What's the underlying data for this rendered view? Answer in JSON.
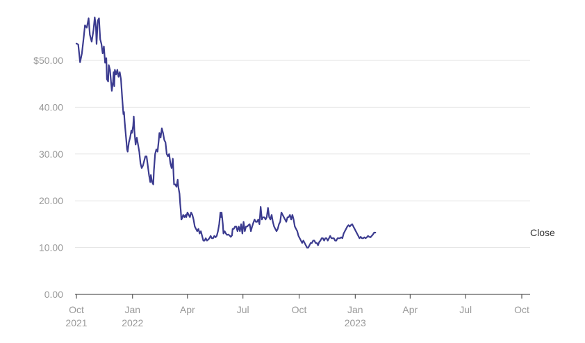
{
  "chart_data": {
    "type": "line",
    "title": "",
    "xlabel": "",
    "ylabel": "",
    "ylim": [
      0,
      60
    ],
    "y_ticks": [
      {
        "value": 0,
        "label": "0.00"
      },
      {
        "value": 10,
        "label": "10.00"
      },
      {
        "value": 20,
        "label": "20.00"
      },
      {
        "value": 30,
        "label": "30.00"
      },
      {
        "value": 40,
        "label": "40.00"
      },
      {
        "value": 50,
        "label": "$50.00"
      }
    ],
    "x_ticks": [
      {
        "day": 0,
        "line1": "Oct",
        "line2": "2021"
      },
      {
        "day": 92,
        "line1": "Jan",
        "line2": "2022"
      },
      {
        "day": 182,
        "line1": "Apr",
        "line2": ""
      },
      {
        "day": 273,
        "line1": "Jul",
        "line2": ""
      },
      {
        "day": 365,
        "line1": "Oct",
        "line2": ""
      },
      {
        "day": 457,
        "line1": "Jan",
        "line2": "2023"
      },
      {
        "day": 547,
        "line1": "Apr",
        "line2": ""
      },
      {
        "day": 638,
        "line1": "Jul",
        "line2": ""
      },
      {
        "day": 730,
        "line1": "Oct",
        "line2": ""
      }
    ],
    "x_range_days": [
      0,
      730
    ],
    "colors": {
      "line": "#3b3b8f",
      "grid": "#e3e3e3",
      "axis": "#333333",
      "tick_text": "#999999",
      "label_text": "#333333"
    },
    "series": [
      {
        "name": "Close",
        "points": [
          [
            0,
            53.6
          ],
          [
            3,
            53.4
          ],
          [
            6,
            49.6
          ],
          [
            9,
            51.5
          ],
          [
            12,
            55
          ],
          [
            14,
            57.5
          ],
          [
            17,
            57
          ],
          [
            20,
            59
          ],
          [
            22,
            55.5
          ],
          [
            25,
            54
          ],
          [
            28,
            56.5
          ],
          [
            30,
            59.2
          ],
          [
            32,
            57
          ],
          [
            33,
            53.5
          ],
          [
            35,
            58.5
          ],
          [
            37,
            59
          ],
          [
            39,
            54.5
          ],
          [
            41,
            53.5
          ],
          [
            43,
            51.5
          ],
          [
            45,
            53
          ],
          [
            47,
            49.5
          ],
          [
            49,
            50.5
          ],
          [
            50,
            46
          ],
          [
            52,
            45.5
          ],
          [
            53,
            49
          ],
          [
            55,
            48
          ],
          [
            57,
            45
          ],
          [
            58,
            43.5
          ],
          [
            60,
            45.5
          ],
          [
            61,
            47.5
          ],
          [
            62,
            44.5
          ],
          [
            63,
            48
          ],
          [
            65,
            47
          ],
          [
            67,
            48
          ],
          [
            69,
            46.5
          ],
          [
            71,
            47.5
          ],
          [
            73,
            46
          ],
          [
            75,
            42
          ],
          [
            77,
            38.5
          ],
          [
            78,
            39
          ],
          [
            79,
            37
          ],
          [
            81,
            34
          ],
          [
            83,
            31
          ],
          [
            84,
            30.5
          ],
          [
            86,
            32.5
          ],
          [
            88,
            33.5
          ],
          [
            90,
            35
          ],
          [
            91,
            34.5
          ],
          [
            93,
            36
          ],
          [
            94,
            38
          ],
          [
            95,
            35
          ],
          [
            97,
            32
          ],
          [
            99,
            33.5
          ],
          [
            101,
            32
          ],
          [
            103,
            30.5
          ],
          [
            105,
            28
          ],
          [
            107,
            27
          ],
          [
            109,
            27.5
          ],
          [
            111,
            28.5
          ],
          [
            113,
            29.5
          ],
          [
            115,
            29.5
          ],
          [
            117,
            27.5
          ],
          [
            119,
            25.5
          ],
          [
            121,
            24
          ],
          [
            122,
            25.5
          ],
          [
            124,
            24
          ],
          [
            126,
            23.5
          ],
          [
            127,
            26.5
          ],
          [
            129,
            30
          ],
          [
            131,
            31
          ],
          [
            133,
            30.5
          ],
          [
            135,
            33
          ],
          [
            136,
            34.5
          ],
          [
            138,
            33.5
          ],
          [
            140,
            35.5
          ],
          [
            142,
            34.5
          ],
          [
            144,
            33
          ],
          [
            146,
            32.5
          ],
          [
            148,
            30
          ],
          [
            150,
            29.5
          ],
          [
            152,
            30
          ],
          [
            154,
            28
          ],
          [
            156,
            27
          ],
          [
            158,
            29
          ],
          [
            160,
            23.5
          ],
          [
            162,
            23.5
          ],
          [
            164,
            23
          ],
          [
            166,
            24.5
          ],
          [
            167,
            23
          ],
          [
            169,
            21.5
          ],
          [
            170,
            19.5
          ],
          [
            171,
            18
          ],
          [
            172,
            16
          ],
          [
            173,
            16.2
          ],
          [
            175,
            17
          ],
          [
            177,
            16.5
          ],
          [
            179,
            17
          ],
          [
            180,
            16.5
          ],
          [
            182,
            17.5
          ],
          [
            184,
            17
          ],
          [
            186,
            16.5
          ],
          [
            188,
            17.5
          ],
          [
            190,
            17
          ],
          [
            192,
            16
          ],
          [
            194,
            14.5
          ],
          [
            196,
            14
          ],
          [
            198,
            13.5
          ],
          [
            200,
            14
          ],
          [
            202,
            13
          ],
          [
            204,
            13.5
          ],
          [
            206,
            12.5
          ],
          [
            208,
            11.5
          ],
          [
            210,
            11.5
          ],
          [
            212,
            12
          ],
          [
            214,
            11.5
          ],
          [
            216,
            11.7
          ],
          [
            218,
            12
          ],
          [
            220,
            12.5
          ],
          [
            222,
            12
          ],
          [
            224,
            12
          ],
          [
            226,
            12.5
          ],
          [
            228,
            12.2
          ],
          [
            230,
            12.5
          ],
          [
            232,
            13.5
          ],
          [
            234,
            15
          ],
          [
            236,
            17.5
          ],
          [
            237,
            16.5
          ],
          [
            238,
            17.5
          ],
          [
            240,
            15
          ],
          [
            241,
            13
          ],
          [
            243,
            13.5
          ],
          [
            245,
            13
          ],
          [
            247,
            12.7
          ],
          [
            249,
            12.8
          ],
          [
            251,
            12.6
          ],
          [
            253,
            12.3
          ],
          [
            255,
            12.6
          ],
          [
            256,
            14
          ],
          [
            258,
            14
          ],
          [
            260,
            14.5
          ],
          [
            262,
            14.5
          ],
          [
            264,
            13.5
          ],
          [
            266,
            14.5
          ],
          [
            268,
            13.5
          ],
          [
            270,
            15
          ],
          [
            272,
            13
          ],
          [
            274,
            15.5
          ],
          [
            276,
            13.5
          ],
          [
            278,
            14.5
          ],
          [
            280,
            14.5
          ],
          [
            282,
            14.8
          ],
          [
            284,
            15
          ],
          [
            286,
            13.5
          ],
          [
            288,
            14.5
          ],
          [
            290,
            15.3
          ],
          [
            292,
            16
          ],
          [
            294,
            15.5
          ],
          [
            296,
            15.5
          ],
          [
            298,
            16
          ],
          [
            300,
            15
          ],
          [
            302,
            18.7
          ],
          [
            304,
            16
          ],
          [
            306,
            16.5
          ],
          [
            308,
            16.5
          ],
          [
            310,
            16
          ],
          [
            312,
            16.5
          ],
          [
            314,
            18.5
          ],
          [
            316,
            16.5
          ],
          [
            318,
            16
          ],
          [
            320,
            17
          ],
          [
            322,
            15.5
          ],
          [
            324,
            14.5
          ],
          [
            326,
            14
          ],
          [
            328,
            13.5
          ],
          [
            330,
            14
          ],
          [
            332,
            15
          ],
          [
            334,
            15.5
          ],
          [
            336,
            17.5
          ],
          [
            338,
            17
          ],
          [
            340,
            16.5
          ],
          [
            342,
            16
          ],
          [
            344,
            15.5
          ],
          [
            346,
            16.5
          ],
          [
            348,
            16.5
          ],
          [
            350,
            17
          ],
          [
            352,
            16
          ],
          [
            354,
            17
          ],
          [
            356,
            16
          ],
          [
            358,
            14.5
          ],
          [
            360,
            14
          ],
          [
            362,
            13.5
          ],
          [
            364,
            12.5
          ],
          [
            366,
            12
          ],
          [
            368,
            11.5
          ],
          [
            370,
            11
          ],
          [
            372,
            11.5
          ],
          [
            374,
            11
          ],
          [
            376,
            10.5
          ],
          [
            378,
            10
          ],
          [
            380,
            10
          ],
          [
            382,
            10.5
          ],
          [
            384,
            11
          ],
          [
            386,
            11
          ],
          [
            388,
            11.5
          ],
          [
            390,
            11.5
          ],
          [
            392,
            11
          ],
          [
            394,
            11
          ],
          [
            396,
            10.5
          ],
          [
            398,
            11.2
          ],
          [
            400,
            11.5
          ],
          [
            402,
            12
          ],
          [
            404,
            12
          ],
          [
            406,
            11.5
          ],
          [
            408,
            12
          ],
          [
            410,
            12
          ],
          [
            412,
            11.5
          ],
          [
            414,
            12
          ],
          [
            416,
            12.5
          ],
          [
            418,
            12
          ],
          [
            420,
            12
          ],
          [
            422,
            12
          ],
          [
            424,
            11.5
          ],
          [
            426,
            11.5
          ],
          [
            428,
            12
          ],
          [
            430,
            12
          ],
          [
            432,
            12
          ],
          [
            434,
            12.2
          ],
          [
            436,
            12
          ],
          [
            438,
            13
          ],
          [
            440,
            13.5
          ],
          [
            442,
            14
          ],
          [
            444,
            14.5
          ],
          [
            446,
            14.8
          ],
          [
            448,
            14.5
          ],
          [
            450,
            14.8
          ],
          [
            452,
            15
          ],
          [
            454,
            14.5
          ],
          [
            456,
            14
          ],
          [
            458,
            13.5
          ],
          [
            460,
            13
          ],
          [
            462,
            12.5
          ],
          [
            464,
            12
          ],
          [
            466,
            12.3
          ],
          [
            468,
            12
          ],
          [
            470,
            12
          ],
          [
            472,
            12.2
          ],
          [
            474,
            12
          ],
          [
            476,
            12.2
          ],
          [
            478,
            12.5
          ],
          [
            480,
            12.3
          ],
          [
            482,
            12.2
          ],
          [
            484,
            12.5
          ],
          [
            486,
            12.8
          ],
          [
            488,
            13.2
          ],
          [
            490,
            13.2
          ]
        ]
      }
    ],
    "series_label": "Close"
  }
}
